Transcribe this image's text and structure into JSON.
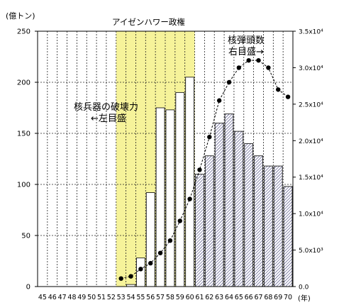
{
  "chart_data": {
    "type": "bar",
    "title": "アイゼンハワー政権",
    "x": [
      "45",
      "46",
      "47",
      "48",
      "49",
      "50",
      "51",
      "52",
      "53",
      "54",
      "55",
      "56",
      "57",
      "58",
      "59",
      "60",
      "61",
      "62",
      "63",
      "64",
      "65",
      "66",
      "67",
      "68",
      "69",
      "70"
    ],
    "xlabel": "(年)",
    "left_axis": {
      "unit": "(億トン)",
      "ylim": [
        0,
        250
      ],
      "ticks": [
        "0",
        "50",
        "100",
        "150",
        "200",
        "250"
      ]
    },
    "right_axis": {
      "ylim": [
        0,
        35000
      ],
      "ticks": [
        "0.0",
        "5.0x10³",
        "1.0x10⁴",
        "1.5x10⁴",
        "2.0x10⁴",
        "2.5x10⁴",
        "3.0x10⁴",
        "3.5x10⁴"
      ]
    },
    "highlight": {
      "label": "アイゼンハワー政権",
      "from": "53",
      "to": "60",
      "color": "#f6f39a"
    },
    "series": [
      {
        "name": "核兵器の破壊力",
        "kind": "bar",
        "axis": "left",
        "values": [
          0,
          0,
          0,
          0,
          0,
          0,
          0,
          0,
          0,
          2,
          28,
          92,
          175,
          173,
          190,
          205,
          110,
          128,
          160,
          169,
          152,
          140,
          128,
          118,
          118,
          98
        ]
      },
      {
        "name": "核弾頭数",
        "kind": "line",
        "axis": "right",
        "values": [
          0,
          0,
          0,
          0,
          0,
          0,
          0,
          0,
          1100,
          1400,
          2400,
          3200,
          4600,
          6300,
          9000,
          12000,
          16000,
          20500,
          25500,
          28000,
          30000,
          31000,
          31000,
          30000,
          27000,
          26000
        ]
      }
    ],
    "annotations": [
      {
        "lines": [
          "核兵器の破壊力",
          "←左目盛"
        ]
      },
      {
        "lines": [
          "核弾頭数",
          "右目盛→"
        ]
      }
    ],
    "grid": true
  }
}
